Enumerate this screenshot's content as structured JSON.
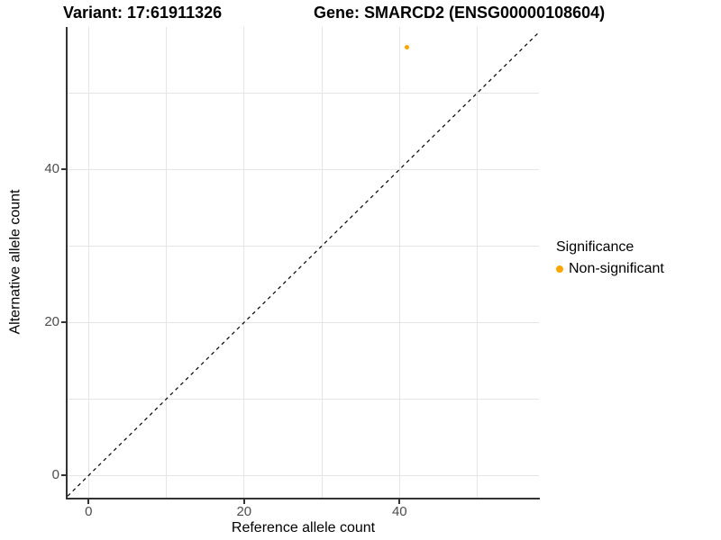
{
  "title_bar": {
    "variant_title": "Variant: 17:61911326",
    "gene_title": "Gene: SMARCD2 (ENSG00000108604)"
  },
  "chart_data": {
    "type": "scatter",
    "xlabel": "Reference allele count",
    "ylabel": "Alternative allele count",
    "x_ticks": [
      0,
      20,
      40
    ],
    "y_ticks": [
      0,
      20,
      40
    ],
    "grid_x": [
      0,
      10,
      20,
      30,
      40,
      50
    ],
    "grid_y": [
      0,
      10,
      20,
      30,
      40,
      50
    ],
    "xlim": [
      -2.7,
      57.9
    ],
    "ylim": [
      -2.9,
      58.6
    ],
    "grid_on": true,
    "points": [
      {
        "x": 41,
        "y": 56,
        "series": "Non-significant"
      }
    ],
    "identity_line": {
      "style": "dashed",
      "equation": "y = x",
      "color": "#000000"
    },
    "legend": {
      "position": "right",
      "title": "Significance",
      "entries": [
        {
          "label": "Non-significant",
          "color": "#FFA500"
        }
      ]
    }
  },
  "colors": {
    "background": "#FFFFFF",
    "point": "#FFA500",
    "gridline": "#E5E5E5",
    "axis_line": "#333333",
    "tick_label": "#4D4D4D",
    "title_text": "#000000"
  }
}
